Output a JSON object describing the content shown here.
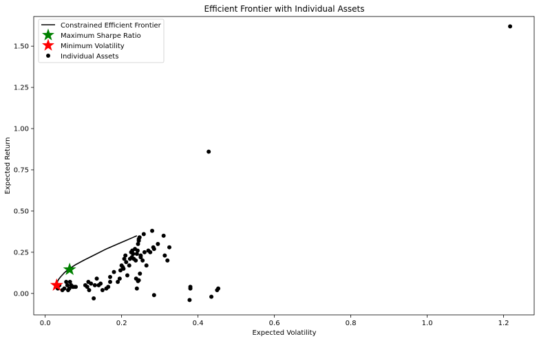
{
  "chart_data": {
    "type": "scatter",
    "title": "Efficient Frontier with Individual Assets",
    "xlabel": "Expected Volatility",
    "ylabel": "Expected Return",
    "xlim": [
      -0.03,
      1.28
    ],
    "ylim": [
      -0.13,
      1.68
    ],
    "x_ticks": [
      0.0,
      0.2,
      0.4,
      0.6,
      0.8,
      1.0,
      1.2
    ],
    "x_tick_labels": [
      "0.0",
      "0.2",
      "0.4",
      "0.6",
      "0.8",
      "1.0",
      "1.2"
    ],
    "y_ticks": [
      0.0,
      0.25,
      0.5,
      0.75,
      1.0,
      1.25,
      1.5
    ],
    "y_tick_labels": [
      "0.00",
      "0.25",
      "0.50",
      "0.75",
      "1.00",
      "1.25",
      "1.50"
    ],
    "grid": false,
    "legend_position": "top-left",
    "series": [
      {
        "name": "Constrained Efficient Frontier",
        "kind": "line",
        "color": "#000000",
        "x": [
          0.03,
          0.035,
          0.04,
          0.05,
          0.06,
          0.08,
          0.1,
          0.13,
          0.16,
          0.19,
          0.21,
          0.23,
          0.24
        ],
        "y": [
          0.06,
          0.085,
          0.1,
          0.125,
          0.145,
          0.175,
          0.2,
          0.235,
          0.27,
          0.3,
          0.32,
          0.34,
          0.35
        ]
      },
      {
        "name": "Maximum Sharpe Ratio",
        "kind": "star",
        "color": "#008000",
        "x": [
          0.064
        ],
        "y": [
          0.145
        ]
      },
      {
        "name": "Minimum Volatility",
        "kind": "star",
        "color": "#ff0000",
        "x": [
          0.03
        ],
        "y": [
          0.05
        ]
      },
      {
        "name": "Individual Assets",
        "kind": "points",
        "color": "#000000",
        "x": [
          0.033,
          0.037,
          0.045,
          0.05,
          0.055,
          0.058,
          0.06,
          0.063,
          0.065,
          0.068,
          0.072,
          0.075,
          0.08,
          0.105,
          0.11,
          0.113,
          0.115,
          0.12,
          0.127,
          0.13,
          0.135,
          0.14,
          0.145,
          0.15,
          0.16,
          0.165,
          0.17,
          0.17,
          0.18,
          0.19,
          0.195,
          0.197,
          0.2,
          0.203,
          0.205,
          0.207,
          0.21,
          0.212,
          0.215,
          0.22,
          0.222,
          0.225,
          0.227,
          0.228,
          0.23,
          0.232,
          0.235,
          0.237,
          0.24,
          0.242,
          0.243,
          0.245,
          0.245,
          0.247,
          0.248,
          0.25,
          0.25,
          0.255,
          0.258,
          0.26,
          0.265,
          0.27,
          0.275,
          0.28,
          0.283,
          0.285,
          0.295,
          0.31,
          0.313,
          0.32,
          0.325,
          0.24,
          0.245,
          0.238,
          0.243,
          0.285,
          0.378,
          0.38,
          0.38,
          0.435,
          0.45,
          0.453,
          0.428,
          1.217
        ],
        "y": [
          0.03,
          0.05,
          0.02,
          0.03,
          0.07,
          0.05,
          0.02,
          0.03,
          0.07,
          0.05,
          0.04,
          0.04,
          0.04,
          0.05,
          0.04,
          0.07,
          0.02,
          0.06,
          -0.03,
          0.05,
          0.09,
          0.05,
          0.06,
          0.02,
          0.03,
          0.04,
          0.07,
          0.1,
          0.13,
          0.07,
          0.09,
          0.14,
          0.17,
          0.16,
          0.15,
          0.21,
          0.23,
          0.19,
          0.11,
          0.17,
          0.21,
          0.25,
          0.22,
          0.26,
          0.24,
          0.21,
          0.27,
          0.2,
          0.24,
          0.26,
          0.3,
          0.32,
          0.33,
          0.34,
          0.12,
          0.23,
          0.22,
          0.2,
          0.36,
          0.25,
          0.17,
          0.26,
          0.25,
          0.38,
          0.28,
          0.27,
          0.3,
          0.35,
          0.23,
          0.2,
          0.28,
          0.03,
          0.08,
          0.09,
          0.075,
          -0.01,
          -0.04,
          0.03,
          0.04,
          -0.02,
          0.02,
          0.03,
          0.86,
          1.62
        ]
      }
    ]
  }
}
